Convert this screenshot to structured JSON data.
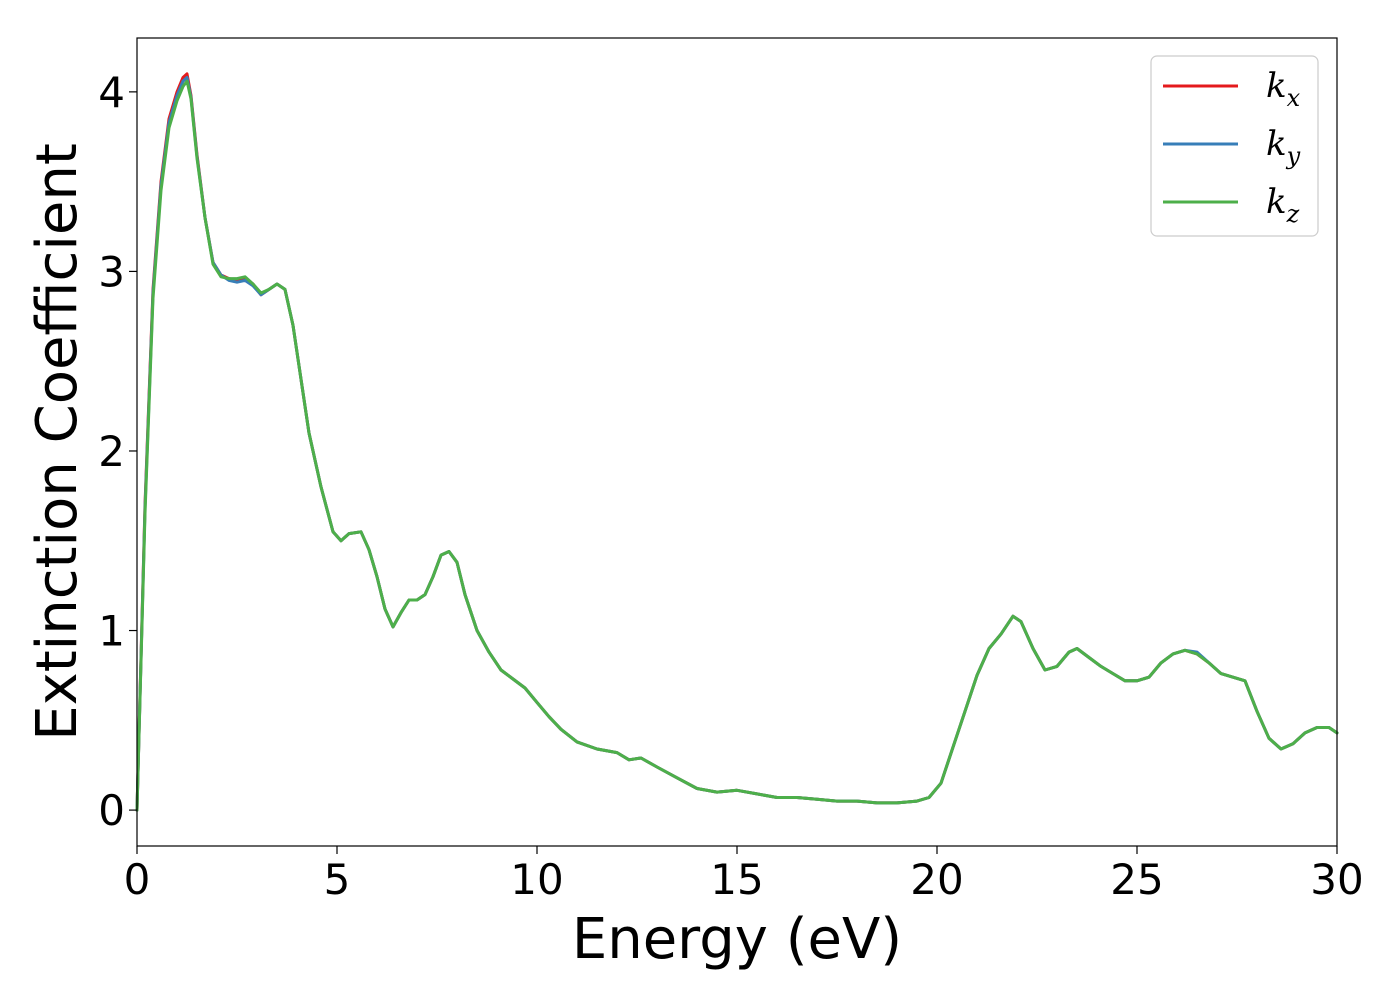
{
  "chart_data": {
    "type": "line",
    "title": "",
    "xlabel": "Energy (eV)",
    "ylabel": "Extinction Coefficient",
    "xlim": [
      0,
      30
    ],
    "ylim": [
      -0.2,
      4.3
    ],
    "xticks": [
      0,
      5,
      10,
      15,
      20,
      25,
      30
    ],
    "yticks": [
      0,
      1,
      2,
      3,
      4
    ],
    "grid": false,
    "legend_position": "top-right",
    "series": [
      {
        "name": "k_x",
        "label_base": "k",
        "label_sub": "x",
        "color": "#e41a1c",
        "x": [
          0,
          0.2,
          0.4,
          0.6,
          0.8,
          1.0,
          1.15,
          1.25,
          1.35,
          1.5,
          1.7,
          1.9,
          2.1,
          2.3,
          2.5,
          2.7,
          2.9,
          3.1,
          3.3,
          3.5,
          3.7,
          3.9,
          4.1,
          4.3,
          4.6,
          4.9,
          5.1,
          5.3,
          5.6,
          5.8,
          6.0,
          6.2,
          6.4,
          6.6,
          6.8,
          7.0,
          7.2,
          7.4,
          7.6,
          7.8,
          8.0,
          8.2,
          8.5,
          8.8,
          9.1,
          9.4,
          9.7,
          10.0,
          10.3,
          10.6,
          11.0,
          11.5,
          12.0,
          12.3,
          12.6,
          13.0,
          13.5,
          14.0,
          14.5,
          15.0,
          15.5,
          16.0,
          16.5,
          17.0,
          17.5,
          18.0,
          18.5,
          19.0,
          19.5,
          19.8,
          20.1,
          20.4,
          20.7,
          21.0,
          21.3,
          21.6,
          21.9,
          22.1,
          22.4,
          22.7,
          23.0,
          23.3,
          23.5,
          23.8,
          24.1,
          24.4,
          24.7,
          25.0,
          25.3,
          25.6,
          25.9,
          26.2,
          26.5,
          26.8,
          27.1,
          27.4,
          27.7,
          28.0,
          28.3,
          28.6,
          28.9,
          29.2,
          29.5,
          29.8,
          30.0
        ],
        "y": [
          0.0,
          1.7,
          2.9,
          3.5,
          3.85,
          4.0,
          4.08,
          4.1,
          3.98,
          3.65,
          3.3,
          3.05,
          2.98,
          2.96,
          2.95,
          2.96,
          2.93,
          2.87,
          2.9,
          2.93,
          2.9,
          2.7,
          2.4,
          2.1,
          1.8,
          1.55,
          1.5,
          1.54,
          1.55,
          1.45,
          1.3,
          1.12,
          1.02,
          1.1,
          1.17,
          1.17,
          1.2,
          1.3,
          1.42,
          1.44,
          1.38,
          1.2,
          1.0,
          0.88,
          0.78,
          0.73,
          0.68,
          0.6,
          0.52,
          0.45,
          0.38,
          0.34,
          0.32,
          0.28,
          0.29,
          0.24,
          0.18,
          0.12,
          0.1,
          0.11,
          0.09,
          0.07,
          0.07,
          0.06,
          0.05,
          0.05,
          0.04,
          0.04,
          0.05,
          0.07,
          0.15,
          0.35,
          0.55,
          0.75,
          0.9,
          0.98,
          1.08,
          1.05,
          0.9,
          0.78,
          0.8,
          0.88,
          0.9,
          0.85,
          0.8,
          0.76,
          0.72,
          0.72,
          0.74,
          0.82,
          0.87,
          0.89,
          0.87,
          0.82,
          0.76,
          0.74,
          0.72,
          0.55,
          0.4,
          0.34,
          0.37,
          0.43,
          0.46,
          0.46,
          0.43
        ]
      },
      {
        "name": "k_y",
        "label_base": "k",
        "label_sub": "y",
        "color": "#377eb8",
        "x": [
          0,
          0.2,
          0.4,
          0.6,
          0.8,
          1.0,
          1.15,
          1.25,
          1.35,
          1.5,
          1.7,
          1.9,
          2.1,
          2.3,
          2.5,
          2.7,
          2.9,
          3.1,
          3.3,
          3.5,
          3.7,
          3.9,
          4.1,
          4.3,
          4.6,
          4.9,
          5.1,
          5.3,
          5.6,
          5.8,
          6.0,
          6.2,
          6.4,
          6.6,
          6.8,
          7.0,
          7.2,
          7.4,
          7.6,
          7.8,
          8.0,
          8.2,
          8.5,
          8.8,
          9.1,
          9.4,
          9.7,
          10.0,
          10.3,
          10.6,
          11.0,
          11.5,
          12.0,
          12.3,
          12.6,
          13.0,
          13.5,
          14.0,
          14.5,
          15.0,
          15.5,
          16.0,
          16.5,
          17.0,
          17.5,
          18.0,
          18.5,
          19.0,
          19.5,
          19.8,
          20.1,
          20.4,
          20.7,
          21.0,
          21.3,
          21.6,
          21.9,
          22.1,
          22.4,
          22.7,
          23.0,
          23.3,
          23.5,
          23.8,
          24.1,
          24.4,
          24.7,
          25.0,
          25.3,
          25.6,
          25.9,
          26.2,
          26.5,
          26.8,
          27.1,
          27.4,
          27.7,
          28.0,
          28.3,
          28.6,
          28.9,
          29.2,
          29.5,
          29.8,
          30.0
        ],
        "y": [
          0.0,
          1.68,
          2.88,
          3.48,
          3.83,
          3.98,
          4.06,
          4.08,
          3.97,
          3.64,
          3.3,
          3.05,
          2.98,
          2.95,
          2.94,
          2.95,
          2.92,
          2.87,
          2.9,
          2.93,
          2.9,
          2.7,
          2.4,
          2.1,
          1.8,
          1.55,
          1.5,
          1.54,
          1.55,
          1.45,
          1.3,
          1.12,
          1.02,
          1.1,
          1.17,
          1.17,
          1.2,
          1.3,
          1.42,
          1.44,
          1.38,
          1.2,
          1.0,
          0.88,
          0.78,
          0.73,
          0.68,
          0.6,
          0.52,
          0.45,
          0.38,
          0.34,
          0.32,
          0.28,
          0.29,
          0.24,
          0.18,
          0.12,
          0.1,
          0.11,
          0.09,
          0.07,
          0.07,
          0.06,
          0.05,
          0.05,
          0.04,
          0.04,
          0.05,
          0.07,
          0.15,
          0.35,
          0.55,
          0.75,
          0.9,
          0.98,
          1.08,
          1.05,
          0.9,
          0.78,
          0.8,
          0.88,
          0.9,
          0.85,
          0.8,
          0.76,
          0.72,
          0.72,
          0.74,
          0.82,
          0.87,
          0.89,
          0.88,
          0.82,
          0.76,
          0.74,
          0.72,
          0.55,
          0.4,
          0.34,
          0.37,
          0.43,
          0.46,
          0.46,
          0.43
        ]
      },
      {
        "name": "k_z",
        "label_base": "k",
        "label_sub": "z",
        "color": "#4daf4a",
        "x": [
          0,
          0.2,
          0.4,
          0.6,
          0.8,
          1.0,
          1.15,
          1.25,
          1.35,
          1.5,
          1.7,
          1.9,
          2.1,
          2.3,
          2.5,
          2.7,
          2.9,
          3.1,
          3.3,
          3.5,
          3.7,
          3.9,
          4.1,
          4.3,
          4.6,
          4.9,
          5.1,
          5.3,
          5.6,
          5.8,
          6.0,
          6.2,
          6.4,
          6.6,
          6.8,
          7.0,
          7.2,
          7.4,
          7.6,
          7.8,
          8.0,
          8.2,
          8.5,
          8.8,
          9.1,
          9.4,
          9.7,
          10.0,
          10.3,
          10.6,
          11.0,
          11.5,
          12.0,
          12.3,
          12.6,
          13.0,
          13.5,
          14.0,
          14.5,
          15.0,
          15.5,
          16.0,
          16.5,
          17.0,
          17.5,
          18.0,
          18.5,
          19.0,
          19.5,
          19.8,
          20.1,
          20.4,
          20.7,
          21.0,
          21.3,
          21.6,
          21.9,
          22.1,
          22.4,
          22.7,
          23.0,
          23.3,
          23.5,
          23.8,
          24.1,
          24.4,
          24.7,
          25.0,
          25.3,
          25.6,
          25.9,
          26.2,
          26.5,
          26.8,
          27.1,
          27.4,
          27.7,
          28.0,
          28.3,
          28.6,
          28.9,
          29.2,
          29.5,
          29.8,
          30.0
        ],
        "y": [
          0.0,
          1.65,
          2.85,
          3.45,
          3.8,
          3.95,
          4.03,
          4.06,
          3.96,
          3.63,
          3.3,
          3.04,
          2.97,
          2.96,
          2.96,
          2.97,
          2.93,
          2.88,
          2.9,
          2.93,
          2.9,
          2.7,
          2.4,
          2.1,
          1.8,
          1.55,
          1.5,
          1.54,
          1.55,
          1.45,
          1.3,
          1.12,
          1.02,
          1.1,
          1.17,
          1.17,
          1.2,
          1.3,
          1.42,
          1.44,
          1.38,
          1.2,
          1.0,
          0.88,
          0.78,
          0.73,
          0.68,
          0.6,
          0.52,
          0.45,
          0.38,
          0.34,
          0.32,
          0.28,
          0.29,
          0.24,
          0.18,
          0.12,
          0.1,
          0.11,
          0.09,
          0.07,
          0.07,
          0.06,
          0.05,
          0.05,
          0.04,
          0.04,
          0.05,
          0.07,
          0.15,
          0.35,
          0.55,
          0.75,
          0.9,
          0.98,
          1.08,
          1.05,
          0.9,
          0.78,
          0.8,
          0.88,
          0.9,
          0.85,
          0.8,
          0.76,
          0.72,
          0.72,
          0.74,
          0.82,
          0.87,
          0.89,
          0.87,
          0.82,
          0.76,
          0.74,
          0.72,
          0.55,
          0.4,
          0.34,
          0.37,
          0.43,
          0.46,
          0.46,
          0.43
        ]
      }
    ]
  }
}
